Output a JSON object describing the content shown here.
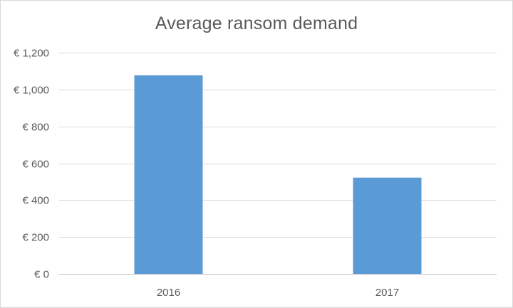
{
  "chart_data": {
    "type": "bar",
    "title": "Average ransom demand",
    "categories": [
      "2016",
      "2017"
    ],
    "values": [
      1077,
      522
    ],
    "ylim": [
      0,
      1200
    ],
    "ytick_step": 200,
    "ytick_labels": [
      "€ 0",
      "€ 200",
      "€ 400",
      "€ 600",
      "€ 800",
      "€ 1,000",
      "€ 1,200"
    ],
    "xlabel": "",
    "ylabel": "",
    "grid": true,
    "legend": "none",
    "colors": {
      "bar": "#5b9bd5",
      "grid": "#d9d9d9",
      "axis": "#bfbfbf",
      "text": "#595959"
    }
  }
}
